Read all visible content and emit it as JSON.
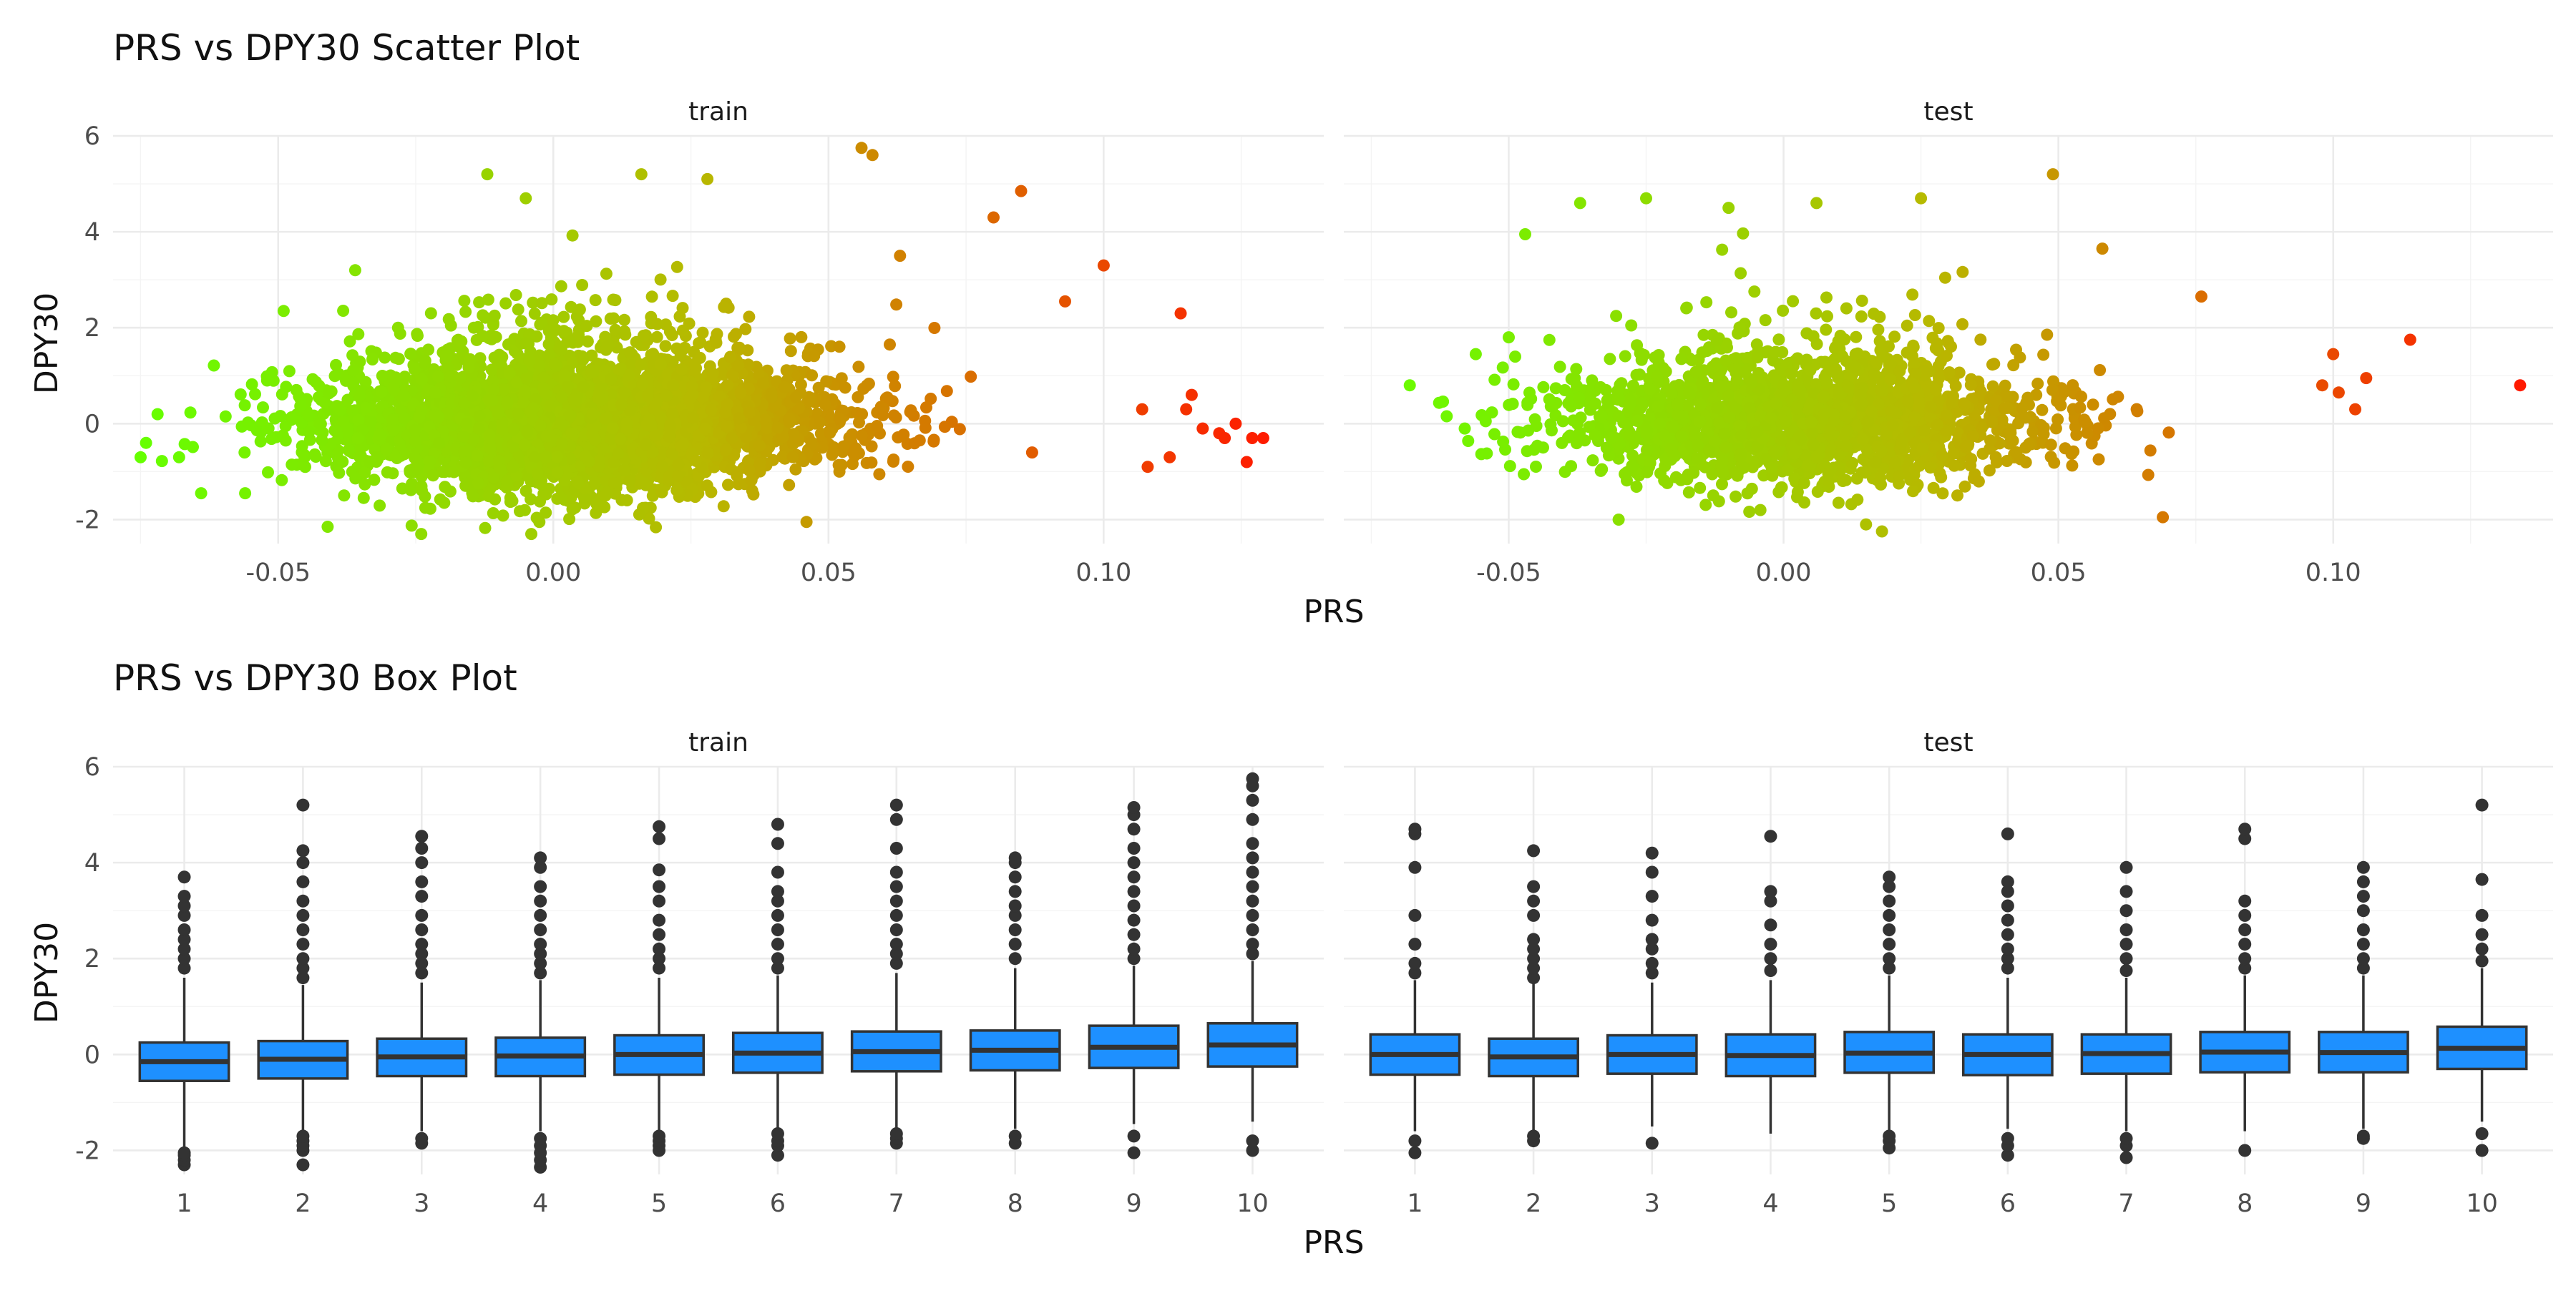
{
  "colors": {
    "low": "#66ff00",
    "mid": "#b8b800",
    "high": "#ff1a00",
    "box_fill": "#1e90ff",
    "box_line": "#333333",
    "grid": "#ebebeb"
  },
  "chart_data": [
    {
      "type": "scatter",
      "title": "PRS vs DPY30 Scatter Plot",
      "xlabel": "PRS",
      "ylabel": "DPY30",
      "color_mapping": "PRS (green at low values to red at high values)",
      "grid": true,
      "facets": [
        {
          "name": "train",
          "xlim": [
            -0.08,
            0.14
          ],
          "ylim": [
            -2.5,
            6
          ],
          "xticks": [
            -0.05,
            0.0,
            0.05,
            0.1
          ],
          "xtick_labels": [
            "-0.05",
            "0.00",
            "0.05",
            "0.10"
          ],
          "yticks": [
            -2,
            0,
            2,
            4,
            6
          ],
          "ytick_labels": [
            "-2",
            "0",
            "2",
            "4",
            "6"
          ],
          "approx_n": 18000,
          "x_mean": 0.005,
          "x_sd": 0.022,
          "y_mean": 0.0,
          "y_sd": 0.68,
          "extreme_points": [
            {
              "x": -0.075,
              "y": -0.7
            },
            {
              "x": -0.074,
              "y": -0.4
            },
            {
              "x": -0.068,
              "y": -0.7
            },
            {
              "x": -0.064,
              "y": -1.45
            },
            {
              "x": -0.056,
              "y": -1.45
            },
            {
              "x": -0.052,
              "y": 0.9
            },
            {
              "x": -0.049,
              "y": 2.35
            },
            {
              "x": -0.041,
              "y": -2.15
            },
            {
              "x": -0.036,
              "y": 3.2
            },
            {
              "x": -0.024,
              "y": -2.3
            },
            {
              "x": -0.012,
              "y": 5.2
            },
            {
              "x": -0.005,
              "y": 4.7
            },
            {
              "x": -0.004,
              "y": -2.3
            },
            {
              "x": 0.016,
              "y": 5.2
            },
            {
              "x": 0.028,
              "y": 5.1
            },
            {
              "x": 0.046,
              "y": -2.05
            },
            {
              "x": 0.056,
              "y": 5.75
            },
            {
              "x": 0.058,
              "y": 5.6
            },
            {
              "x": 0.063,
              "y": 3.5
            },
            {
              "x": 0.08,
              "y": 4.3
            },
            {
              "x": 0.085,
              "y": 4.85
            },
            {
              "x": 0.087,
              "y": -0.6
            },
            {
              "x": 0.093,
              "y": 2.55
            },
            {
              "x": 0.1,
              "y": 3.3
            },
            {
              "x": 0.107,
              "y": 0.3
            },
            {
              "x": 0.108,
              "y": -0.9
            },
            {
              "x": 0.112,
              "y": -0.7
            },
            {
              "x": 0.114,
              "y": 2.3
            },
            {
              "x": 0.115,
              "y": 0.3
            },
            {
              "x": 0.116,
              "y": 0.6
            },
            {
              "x": 0.118,
              "y": -0.1
            },
            {
              "x": 0.121,
              "y": -0.2
            },
            {
              "x": 0.122,
              "y": -0.3
            },
            {
              "x": 0.124,
              "y": 0.0
            },
            {
              "x": 0.126,
              "y": -0.8
            },
            {
              "x": 0.127,
              "y": -0.3
            },
            {
              "x": 0.129,
              "y": -0.3
            }
          ]
        },
        {
          "name": "test",
          "xlim": [
            -0.08,
            0.14
          ],
          "ylim": [
            -2.5,
            6
          ],
          "xticks": [
            -0.05,
            0.0,
            0.05,
            0.1
          ],
          "xtick_labels": [
            "-0.05",
            "0.00",
            "0.05",
            "0.10"
          ],
          "yticks": [
            -2,
            0,
            2,
            4,
            6
          ],
          "ytick_labels": [
            "-2",
            "0",
            "2",
            "4",
            "6"
          ],
          "approx_n": 8000,
          "x_mean": 0.003,
          "x_sd": 0.022,
          "y_mean": 0.0,
          "y_sd": 0.68,
          "extreme_points": [
            {
              "x": -0.068,
              "y": 0.8
            },
            {
              "x": -0.058,
              "y": -0.1
            },
            {
              "x": -0.056,
              "y": 1.45
            },
            {
              "x": -0.05,
              "y": 1.8
            },
            {
              "x": -0.047,
              "y": 3.95
            },
            {
              "x": -0.037,
              "y": 4.6
            },
            {
              "x": -0.03,
              "y": -2.0
            },
            {
              "x": -0.025,
              "y": 4.7
            },
            {
              "x": -0.01,
              "y": 4.5
            },
            {
              "x": 0.006,
              "y": 4.6
            },
            {
              "x": 0.015,
              "y": -2.1
            },
            {
              "x": 0.025,
              "y": 4.7
            },
            {
              "x": 0.049,
              "y": 5.2
            },
            {
              "x": 0.058,
              "y": 3.65
            },
            {
              "x": 0.069,
              "y": -1.95
            },
            {
              "x": 0.076,
              "y": 2.65
            },
            {
              "x": 0.098,
              "y": 0.8
            },
            {
              "x": 0.1,
              "y": 1.45
            },
            {
              "x": 0.101,
              "y": 0.65
            },
            {
              "x": 0.104,
              "y": 0.3
            },
            {
              "x": 0.106,
              "y": 0.95
            },
            {
              "x": 0.114,
              "y": 1.75
            },
            {
              "x": 0.134,
              "y": 0.8
            }
          ]
        }
      ]
    },
    {
      "type": "box",
      "title": "PRS vs DPY30 Box Plot",
      "xlabel": "PRS",
      "ylabel": "DPY30",
      "grid": true,
      "categories": [
        "1",
        "2",
        "3",
        "4",
        "5",
        "6",
        "7",
        "8",
        "9",
        "10"
      ],
      "facets": [
        {
          "name": "train",
          "ylim": [
            -2.5,
            6
          ],
          "yticks": [
            -2,
            0,
            2,
            4,
            6
          ],
          "ytick_labels": [
            "-2",
            "0",
            "2",
            "4",
            "6"
          ],
          "boxes": [
            {
              "q1": -0.55,
              "median": -0.15,
              "q3": 0.25,
              "whisker_low": -1.95,
              "whisker_high": 1.6,
              "outliers": [
                -2.3,
                -2.2,
                -2.1,
                -2.05,
                1.8,
                2.0,
                2.2,
                2.4,
                2.6,
                2.9,
                3.1,
                3.3,
                3.7
              ]
            },
            {
              "q1": -0.5,
              "median": -0.1,
              "q3": 0.28,
              "whisker_low": -1.65,
              "whisker_high": 1.45,
              "outliers": [
                -2.3,
                -2.0,
                -1.9,
                -1.8,
                -1.7,
                1.6,
                1.8,
                2.0,
                2.3,
                2.6,
                2.9,
                3.2,
                3.6,
                4.0,
                4.25,
                5.2
              ]
            },
            {
              "q1": -0.45,
              "median": -0.05,
              "q3": 0.33,
              "whisker_low": -1.6,
              "whisker_high": 1.5,
              "outliers": [
                -1.85,
                -1.75,
                1.7,
                1.9,
                2.1,
                2.3,
                2.6,
                2.9,
                3.3,
                3.6,
                4.0,
                4.3,
                4.55
              ]
            },
            {
              "q1": -0.45,
              "median": -0.03,
              "q3": 0.35,
              "whisker_low": -1.6,
              "whisker_high": 1.55,
              "outliers": [
                -2.35,
                -2.2,
                -2.05,
                -1.9,
                -1.75,
                1.7,
                1.9,
                2.1,
                2.3,
                2.6,
                2.9,
                3.2,
                3.5,
                3.9,
                4.1
              ]
            },
            {
              "q1": -0.42,
              "median": 0.0,
              "q3": 0.4,
              "whisker_low": -1.6,
              "whisker_high": 1.6,
              "outliers": [
                -2.0,
                -1.9,
                -1.8,
                -1.7,
                1.8,
                2.0,
                2.2,
                2.5,
                2.8,
                3.2,
                3.5,
                3.85,
                4.5,
                4.75
              ]
            },
            {
              "q1": -0.38,
              "median": 0.03,
              "q3": 0.45,
              "whisker_low": -1.55,
              "whisker_high": 1.65,
              "outliers": [
                -2.1,
                -1.9,
                -1.8,
                -1.65,
                1.8,
                2.0,
                2.3,
                2.6,
                2.9,
                3.2,
                3.4,
                3.8,
                4.4,
                4.8
              ]
            },
            {
              "q1": -0.35,
              "median": 0.06,
              "q3": 0.48,
              "whisker_low": -1.55,
              "whisker_high": 1.7,
              "outliers": [
                -1.85,
                -1.75,
                -1.65,
                1.9,
                2.1,
                2.3,
                2.6,
                2.9,
                3.2,
                3.5,
                3.8,
                4.3,
                4.9,
                5.2
              ]
            },
            {
              "q1": -0.33,
              "median": 0.09,
              "q3": 0.5,
              "whisker_low": -1.55,
              "whisker_high": 1.8,
              "outliers": [
                -1.85,
                -1.7,
                2.0,
                2.3,
                2.6,
                2.9,
                3.1,
                3.4,
                3.7,
                4.0,
                4.1
              ]
            },
            {
              "q1": -0.28,
              "median": 0.15,
              "q3": 0.6,
              "whisker_low": -1.45,
              "whisker_high": 1.85,
              "outliers": [
                -2.05,
                -1.7,
                2.0,
                2.2,
                2.5,
                2.8,
                3.1,
                3.4,
                3.7,
                4.0,
                4.3,
                4.7,
                5.0,
                5.15
              ]
            },
            {
              "q1": -0.25,
              "median": 0.2,
              "q3": 0.65,
              "whisker_low": -1.4,
              "whisker_high": 1.95,
              "outliers": [
                -2.0,
                -1.8,
                2.1,
                2.3,
                2.6,
                2.9,
                3.2,
                3.5,
                3.8,
                4.1,
                4.4,
                4.9,
                5.3,
                5.6,
                5.75
              ]
            }
          ]
        },
        {
          "name": "test",
          "ylim": [
            -2.5,
            6
          ],
          "yticks": [
            -2,
            0,
            2,
            4,
            6
          ],
          "ytick_labels": [
            "-2",
            "0",
            "2",
            "4",
            "6"
          ],
          "boxes": [
            {
              "q1": -0.42,
              "median": 0.0,
              "q3": 0.42,
              "whisker_low": -1.6,
              "whisker_high": 1.55,
              "outliers": [
                -2.05,
                -1.8,
                1.7,
                1.9,
                2.3,
                2.9,
                3.9,
                4.6,
                4.7
              ]
            },
            {
              "q1": -0.45,
              "median": -0.05,
              "q3": 0.33,
              "whisker_low": -1.6,
              "whisker_high": 1.5,
              "outliers": [
                -1.8,
                -1.7,
                1.6,
                1.8,
                2.0,
                2.2,
                2.4,
                2.9,
                3.2,
                3.5,
                4.25
              ]
            },
            {
              "q1": -0.4,
              "median": 0.0,
              "q3": 0.4,
              "whisker_low": -1.5,
              "whisker_high": 1.5,
              "outliers": [
                -1.85,
                1.7,
                1.9,
                2.2,
                2.4,
                2.8,
                3.3,
                3.8,
                4.2
              ]
            },
            {
              "q1": -0.45,
              "median": -0.02,
              "q3": 0.42,
              "whisker_low": -1.65,
              "whisker_high": 1.55,
              "outliers": [
                1.75,
                2.0,
                2.3,
                2.7,
                3.2,
                3.4,
                4.55
              ]
            },
            {
              "q1": -0.38,
              "median": 0.03,
              "q3": 0.47,
              "whisker_low": -1.6,
              "whisker_high": 1.65,
              "outliers": [
                -1.95,
                -1.8,
                -1.7,
                1.8,
                2.0,
                2.3,
                2.6,
                2.9,
                3.2,
                3.5,
                3.7
              ]
            },
            {
              "q1": -0.43,
              "median": 0.0,
              "q3": 0.42,
              "whisker_low": -1.55,
              "whisker_high": 1.6,
              "outliers": [
                -2.1,
                -1.9,
                -1.75,
                1.8,
                2.0,
                2.2,
                2.5,
                2.8,
                3.1,
                3.4,
                3.6,
                4.6
              ]
            },
            {
              "q1": -0.4,
              "median": 0.02,
              "q3": 0.42,
              "whisker_low": -1.6,
              "whisker_high": 1.6,
              "outliers": [
                -2.15,
                -1.9,
                -1.75,
                1.75,
                2.0,
                2.3,
                2.6,
                3.0,
                3.4,
                3.9
              ]
            },
            {
              "q1": -0.37,
              "median": 0.05,
              "q3": 0.47,
              "whisker_low": -1.6,
              "whisker_high": 1.65,
              "outliers": [
                -2.0,
                1.8,
                2.0,
                2.3,
                2.6,
                2.9,
                3.2,
                4.5,
                4.7
              ]
            },
            {
              "q1": -0.37,
              "median": 0.04,
              "q3": 0.47,
              "whisker_low": -1.55,
              "whisker_high": 1.65,
              "outliers": [
                -1.75,
                -1.7,
                1.8,
                2.0,
                2.3,
                2.6,
                3.0,
                3.3,
                3.6,
                3.9
              ]
            },
            {
              "q1": -0.3,
              "median": 0.13,
              "q3": 0.58,
              "whisker_low": -1.4,
              "whisker_high": 1.8,
              "outliers": [
                -2.0,
                -1.65,
                1.95,
                2.2,
                2.5,
                2.9,
                3.65,
                5.2
              ]
            }
          ]
        }
      ]
    }
  ]
}
